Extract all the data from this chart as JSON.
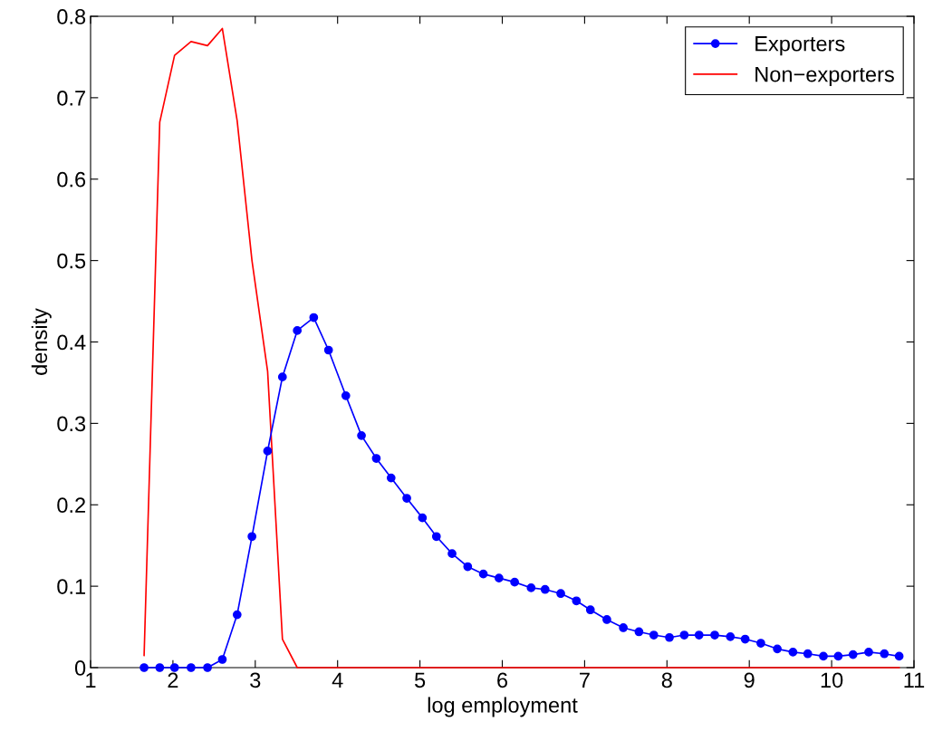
{
  "chart_data": {
    "type": "line",
    "xlabel": "log employment",
    "ylabel": "density",
    "x": [
      1.65,
      1.84,
      2.02,
      2.22,
      2.42,
      2.6,
      2.78,
      2.96,
      3.15,
      3.33,
      3.51,
      3.71,
      3.89,
      4.1,
      4.29,
      4.47,
      4.65,
      4.84,
      5.03,
      5.2,
      5.39,
      5.58,
      5.77,
      5.96,
      6.15,
      6.35,
      6.52,
      6.71,
      6.9,
      7.07,
      7.27,
      7.47,
      7.66,
      7.84,
      8.03,
      8.21,
      8.39,
      8.58,
      8.77,
      8.95,
      9.14,
      9.34,
      9.53,
      9.71,
      9.9,
      10.08,
      10.26,
      10.45,
      10.64,
      10.82
    ],
    "series": [
      {
        "name": "Exporters",
        "color": "#0000ff",
        "marker": "circle",
        "values": [
          0,
          0,
          0,
          0,
          0,
          0.01,
          0.065,
          0.161,
          0.266,
          0.357,
          0.414,
          0.43,
          0.39,
          0.334,
          0.285,
          0.257,
          0.233,
          0.208,
          0.184,
          0.161,
          0.14,
          0.124,
          0.115,
          0.11,
          0.105,
          0.098,
          0.096,
          0.091,
          0.082,
          0.071,
          0.059,
          0.049,
          0.044,
          0.04,
          0.037,
          0.04,
          0.04,
          0.04,
          0.038,
          0.035,
          0.03,
          0.023,
          0.019,
          0.017,
          0.014,
          0.014,
          0.016,
          0.019,
          0.017,
          0.014
        ]
      },
      {
        "name": "Non−exporters",
        "color": "#ff0000",
        "marker": "none",
        "values": [
          0.015,
          0.67,
          0.752,
          0.769,
          0.764,
          0.785,
          0.672,
          0.5,
          0.364,
          0.035,
          0,
          0,
          0,
          0,
          0,
          0,
          0,
          0,
          0,
          0,
          0,
          0,
          0,
          0,
          0,
          0,
          0,
          0,
          0,
          0,
          0,
          0,
          0,
          0,
          0,
          0,
          0,
          0,
          0,
          0,
          0,
          0,
          0,
          0,
          0,
          0,
          0,
          0,
          0,
          0
        ]
      }
    ],
    "xlim": [
      1,
      11
    ],
    "xticks": [
      1,
      2,
      3,
      4,
      5,
      6,
      7,
      8,
      9,
      10,
      11
    ],
    "ylim": [
      0,
      0.8
    ],
    "yticks": [
      0,
      0.1,
      0.2,
      0.3,
      0.4,
      0.5,
      0.6,
      0.7,
      0.8
    ],
    "grid": false,
    "legend": "top right",
    "line_style": "solid"
  }
}
